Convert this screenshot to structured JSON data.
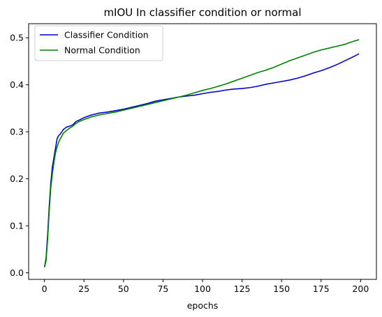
{
  "chart_data": {
    "type": "line",
    "title": "mIOU In classifier condition or normal",
    "xlabel": "epochs",
    "ylabel": "",
    "xlim": [
      -10,
      210
    ],
    "ylim": [
      -0.014,
      0.53
    ],
    "xticks": [
      0,
      25,
      50,
      75,
      100,
      125,
      150,
      175,
      200
    ],
    "yticks": [
      0.0,
      0.1,
      0.2,
      0.3,
      0.4,
      0.5
    ],
    "ytick_labels": [
      "0.0",
      "0.1",
      "0.2",
      "0.3",
      "0.4",
      "0.5"
    ],
    "grid": false,
    "legend_position": "top-left",
    "series": [
      {
        "name": "Classifier Condition",
        "color": "#0000cc",
        "x": [
          0,
          1,
          2,
          3,
          4,
          5,
          6,
          7,
          8,
          9,
          10,
          12,
          14,
          16,
          18,
          20,
          22,
          25,
          30,
          35,
          40,
          45,
          50,
          55,
          60,
          65,
          70,
          75,
          80,
          85,
          90,
          95,
          100,
          105,
          110,
          115,
          120,
          125,
          130,
          135,
          140,
          145,
          150,
          155,
          160,
          165,
          170,
          175,
          180,
          185,
          190,
          195,
          199
        ],
        "y": [
          0.012,
          0.03,
          0.08,
          0.14,
          0.19,
          0.225,
          0.245,
          0.265,
          0.285,
          0.292,
          0.295,
          0.305,
          0.31,
          0.312,
          0.315,
          0.322,
          0.325,
          0.33,
          0.336,
          0.34,
          0.342,
          0.345,
          0.348,
          0.352,
          0.356,
          0.36,
          0.365,
          0.368,
          0.371,
          0.374,
          0.376,
          0.378,
          0.381,
          0.384,
          0.386,
          0.389,
          0.391,
          0.392,
          0.394,
          0.397,
          0.401,
          0.404,
          0.407,
          0.41,
          0.414,
          0.419,
          0.425,
          0.43,
          0.436,
          0.443,
          0.451,
          0.459,
          0.466
        ]
      },
      {
        "name": "Normal Condition",
        "color": "#008000",
        "x": [
          0,
          1,
          2,
          3,
          4,
          5,
          6,
          7,
          8,
          9,
          10,
          12,
          14,
          16,
          18,
          20,
          22,
          25,
          30,
          35,
          40,
          45,
          50,
          55,
          60,
          65,
          70,
          75,
          80,
          85,
          90,
          95,
          100,
          105,
          110,
          115,
          120,
          125,
          130,
          135,
          140,
          145,
          150,
          155,
          160,
          165,
          170,
          175,
          180,
          185,
          190,
          195,
          199
        ],
        "y": [
          0.012,
          0.025,
          0.07,
          0.13,
          0.18,
          0.21,
          0.235,
          0.255,
          0.268,
          0.278,
          0.285,
          0.297,
          0.303,
          0.308,
          0.312,
          0.318,
          0.322,
          0.326,
          0.332,
          0.336,
          0.339,
          0.342,
          0.346,
          0.35,
          0.354,
          0.358,
          0.362,
          0.366,
          0.37,
          0.374,
          0.378,
          0.383,
          0.388,
          0.392,
          0.397,
          0.402,
          0.408,
          0.414,
          0.42,
          0.426,
          0.431,
          0.437,
          0.444,
          0.451,
          0.457,
          0.463,
          0.469,
          0.474,
          0.478,
          0.482,
          0.486,
          0.492,
          0.496
        ]
      }
    ]
  }
}
